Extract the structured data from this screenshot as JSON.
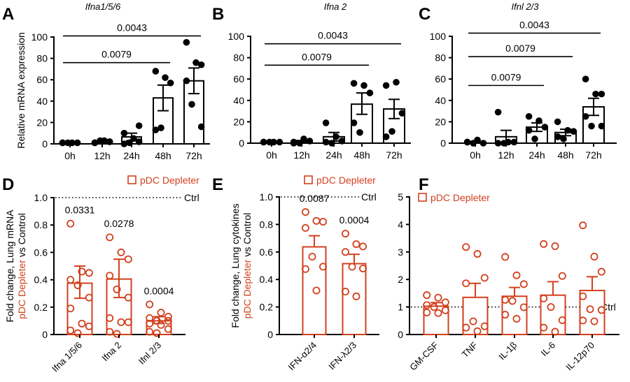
{
  "colors": {
    "depleter": "#d2401e",
    "control": "#000000"
  },
  "chart_data": [
    {
      "panel": "A",
      "title": "Ifna1/5/6",
      "type": "bar",
      "ylabel": "Relative mRNA expression",
      "ylim": [
        0,
        100
      ],
      "yticks": [
        "0",
        "20",
        "40",
        "60",
        "80",
        "100"
      ],
      "categories": [
        "0h",
        "12h",
        "24h",
        "48h",
        "72h"
      ],
      "means": [
        1,
        1.5,
        6.5,
        43,
        59
      ],
      "err_low": [
        0.5,
        0.5,
        3,
        31,
        47
      ],
      "err_high": [
        1.5,
        2.5,
        10,
        55,
        71
      ],
      "points": [
        [
          1,
          1,
          1,
          1,
          1
        ],
        [
          1,
          3,
          2,
          1,
          3,
          2
        ],
        [
          0,
          5,
          17,
          10,
          1,
          2
        ],
        [
          68,
          62,
          57,
          13,
          15
        ],
        [
          95,
          76,
          74,
          59,
          37,
          16
        ]
      ],
      "significance": [
        {
          "from": "0h",
          "to": "72h",
          "y": 101,
          "p": "0.0043"
        },
        {
          "from": "0h",
          "to": "48h",
          "y": 76,
          "p": "0.0079"
        }
      ]
    },
    {
      "panel": "B",
      "title": "Ifna 2",
      "type": "bar",
      "ylabel": "",
      "ylim": [
        0,
        100
      ],
      "yticks": [
        "0",
        "20",
        "40",
        "60",
        "80",
        "100"
      ],
      "categories": [
        "0h",
        "12h",
        "24h",
        "48h",
        "72h"
      ],
      "means": [
        1,
        1.5,
        6,
        36.5,
        32
      ],
      "err_low": [
        0.5,
        0.5,
        2,
        27,
        23
      ],
      "err_high": [
        1.5,
        2.5,
        10,
        47,
        41
      ],
      "points": [
        [
          1,
          1,
          1,
          1,
          1
        ],
        [
          0,
          4,
          2,
          1,
          0
        ],
        [
          19,
          6,
          2,
          1,
          0
        ],
        [
          56,
          54,
          47,
          19,
          10
        ],
        [
          54,
          57,
          28,
          6,
          11
        ]
      ],
      "significance": [
        {
          "from": "0h",
          "to": "72h",
          "y": 93,
          "p": "0.0043"
        },
        {
          "from": "0h",
          "to": "48h",
          "y": 73,
          "p": "0.0079"
        }
      ]
    },
    {
      "panel": "C",
      "title": "Ifnl 2/3",
      "type": "bar",
      "ylabel": "",
      "ylim": [
        0,
        100
      ],
      "yticks": [
        "0",
        "20",
        "40",
        "60",
        "80",
        "100"
      ],
      "categories": [
        "0h",
        "12h",
        "24h",
        "48h",
        "72h"
      ],
      "means": [
        1,
        6,
        15,
        10,
        34
      ],
      "err_low": [
        0.5,
        0,
        11,
        7,
        26
      ],
      "err_high": [
        1.5,
        12,
        19,
        13,
        42
      ],
      "points": [
        [
          1,
          3,
          0,
          1,
          0
        ],
        [
          29,
          1,
          1,
          0,
          0
        ],
        [
          25,
          21,
          15,
          12,
          4
        ],
        [
          20,
          12,
          11,
          6,
          4
        ],
        [
          60,
          46,
          46,
          25,
          16,
          16
        ]
      ],
      "significance": [
        {
          "from": "0h",
          "to": "72h",
          "y": 103,
          "p": "0.0043"
        },
        {
          "from": "0h",
          "to": "48h",
          "y": 81,
          "p": "0.0079"
        },
        {
          "from": "0h",
          "to": "24h",
          "y": 54,
          "p": "0.0079"
        }
      ]
    },
    {
      "panel": "D",
      "title": "",
      "type": "bar",
      "ylabel": [
        "Fold change, Lung mRNA",
        "pDC Depleter",
        " vs Control"
      ],
      "ylim": [
        0,
        1
      ],
      "yticks": [
        "0",
        "0.2",
        "0.4",
        "0.6",
        "0.8",
        "1.0"
      ],
      "legend": "pDC Depleter",
      "reference_line": {
        "y": 1.0,
        "label": "Ctrl"
      },
      "categories": [
        "Ifna 1/5/6",
        "Ifna 2",
        "Ifnl 2/3"
      ],
      "means": [
        0.375,
        0.405,
        0.1
      ],
      "err_low": [
        0.265,
        0.27,
        0.08
      ],
      "err_high": [
        0.5,
        0.55,
        0.13
      ],
      "points": [
        [
          0.81,
          0.46,
          0.45,
          0.4,
          0.36,
          0.27,
          0.19,
          0.08,
          0.06,
          0.03,
          0.01
        ],
        [
          0.71,
          0.6,
          0.55,
          0.43,
          0.33,
          0.27,
          0.12,
          0.09,
          0.09,
          0.02,
          0.005
        ],
        [
          0.22,
          0.16,
          0.13,
          0.12,
          0.1,
          0.1,
          0.08,
          0.07,
          0.04,
          0.02,
          0.01
        ]
      ],
      "p_values": [
        "0.0331",
        "0.0278",
        "0.0004"
      ]
    },
    {
      "panel": "E",
      "title": "",
      "type": "bar",
      "ylabel": [
        "Fold change, Lung cytokines",
        "pDC Depleter",
        " vs Control"
      ],
      "ylim": [
        0,
        1
      ],
      "yticks": [
        "0",
        "0.2",
        "0.4",
        "0.6",
        "0.8",
        "1.0"
      ],
      "legend": "pDC Depleter",
      "reference_line": {
        "y": 1.0,
        "label": "Ctrl"
      },
      "categories": [
        "IFN-α2/4",
        "IFN-λ2/3"
      ],
      "means": [
        0.637,
        0.515
      ],
      "err_low": [
        0.637,
        0.515
      ],
      "err_high": [
        0.718,
        0.583
      ],
      "points": [
        [
          0.89,
          0.826,
          0.82,
          0.775,
          0.566,
          0.493,
          0.476,
          0.32
        ],
        [
          0.733,
          0.657,
          0.64,
          0.6,
          0.493,
          0.48,
          0.312,
          0.277
        ]
      ],
      "p_values": [
        "0.0087",
        "0.0004"
      ]
    },
    {
      "panel": "F",
      "title": "",
      "type": "bar",
      "ylabel": "",
      "ylim": [
        0,
        5
      ],
      "yticks": [
        "0",
        "1",
        "2",
        "3",
        "4",
        "5"
      ],
      "legend": "pDC Depleter",
      "reference_line": {
        "y": 1.0,
        "label": "Ctrl"
      },
      "categories": [
        "GM-CSF",
        "TNF",
        "IL-1β",
        "IL-6",
        "IL-12p70"
      ],
      "means": [
        1.03,
        1.35,
        1.39,
        1.43,
        1.6
      ],
      "err_low": [
        1.03,
        1.35,
        1.39,
        1.43,
        1.6
      ],
      "err_high": [
        1.16,
        1.86,
        1.71,
        1.92,
        2.1
      ],
      "points": [
        [
          1.43,
          1.34,
          1.17,
          1.07,
          1.0,
          0.88,
          0.8,
          0.78
        ],
        [
          3.18,
          2.93,
          2.06,
          1.86,
          0.48,
          0.3,
          0.25,
          0.12
        ],
        [
          2.82,
          2.15,
          1.83,
          1.26,
          1.22,
          0.99,
          0.72,
          0.57
        ],
        [
          3.29,
          3.21,
          2.13,
          1.31,
          1.0,
          0.52,
          0.25,
          0.1
        ],
        [
          3.97,
          2.83,
          2.28,
          1.39,
          0.92,
          0.89,
          0.51,
          0.48
        ]
      ],
      "p_values": []
    }
  ]
}
